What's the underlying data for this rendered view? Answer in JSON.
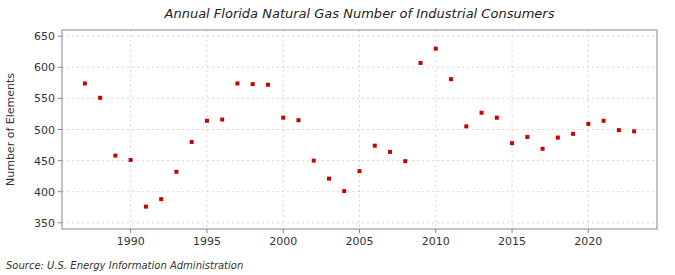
{
  "chart_data": {
    "type": "scatter",
    "title": "Annual Florida Natural Gas Number of Industrial Consumers",
    "ylabel": "Number of Elements",
    "source": "Source: U.S. Energy Information Administration",
    "x": [
      1987,
      1988,
      1989,
      1990,
      1991,
      1992,
      1993,
      1994,
      1995,
      1996,
      1997,
      1998,
      1999,
      2000,
      2001,
      2002,
      2003,
      2004,
      2005,
      2006,
      2007,
      2008,
      2009,
      2010,
      2011,
      2012,
      2013,
      2014,
      2015,
      2016,
      2017,
      2018,
      2019,
      2020,
      2021,
      2022,
      2023
    ],
    "values": [
      574,
      551,
      458,
      451,
      376,
      388,
      432,
      480,
      514,
      516,
      574,
      573,
      572,
      519,
      515,
      450,
      421,
      401,
      433,
      474,
      464,
      449,
      607,
      630,
      581,
      505,
      527,
      519,
      478,
      488,
      469,
      487,
      493,
      509,
      514,
      499,
      497
    ],
    "color": "#cc0000",
    "marker": "square",
    "xlim": [
      1985.5,
      2024.5
    ],
    "xticks": [
      1990,
      1995,
      2000,
      2005,
      2010,
      2015,
      2020
    ],
    "ylim": [
      340,
      660
    ],
    "yticks": [
      350,
      400,
      450,
      500,
      550,
      600,
      650
    ],
    "grid": true
  }
}
